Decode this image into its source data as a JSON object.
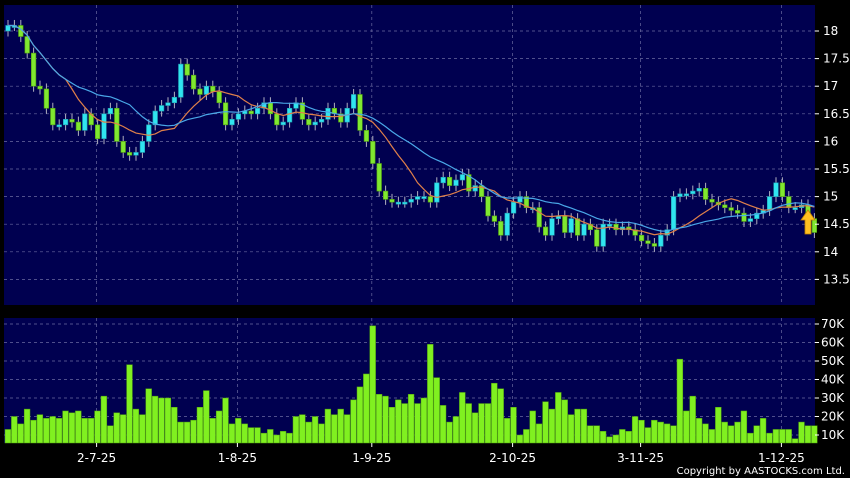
{
  "copyright": "Copyright by AASTOCKS.com Ltd.",
  "colors": {
    "background": "#000050",
    "up": "#30e4f0",
    "down": "#80e830",
    "ma_short": "#e0804a",
    "ma_long": "#4aa8e8",
    "volume": "#80f020",
    "grid": "#6a6aa0",
    "arrow": "#ffc020"
  },
  "chart_data": [
    {
      "type": "candlestick",
      "panel": "price",
      "ylim": [
        13.1,
        18.5
      ],
      "yticks": [
        "18",
        "17.5",
        "17",
        "16.5",
        "16",
        "15.5",
        "15",
        "14.5",
        "14",
        "13.5"
      ],
      "ytick_values": [
        18,
        17.5,
        17,
        16.5,
        16,
        15.5,
        15,
        14.5,
        14,
        13.5
      ],
      "grid": true,
      "moving_averages": [
        {
          "period": 10,
          "color": "#e0804a"
        },
        {
          "period": 20,
          "color": "#4aa8e8"
        }
      ],
      "latest_marker": "up-arrow-icon",
      "close": [
        18.1,
        18.1,
        17.9,
        17.6,
        17.0,
        16.95,
        16.6,
        16.3,
        16.3,
        16.4,
        16.35,
        16.2,
        16.5,
        16.3,
        16.05,
        16.5,
        16.6,
        16.0,
        15.8,
        15.75,
        15.8,
        16.0,
        16.3,
        16.55,
        16.65,
        16.7,
        16.8,
        17.4,
        17.2,
        16.95,
        16.85,
        17.0,
        16.9,
        16.7,
        16.3,
        16.4,
        16.5,
        16.55,
        16.5,
        16.6,
        16.7,
        16.5,
        16.3,
        16.35,
        16.6,
        16.7,
        16.4,
        16.3,
        16.35,
        16.4,
        16.6,
        16.5,
        16.35,
        16.6,
        16.85,
        16.2,
        16.0,
        15.6,
        15.1,
        14.95,
        14.9,
        14.9,
        14.9,
        14.95,
        15.0,
        15.0,
        14.9,
        15.25,
        15.35,
        15.2,
        15.3,
        15.4,
        15.1,
        15.2,
        15.0,
        14.65,
        14.55,
        14.3,
        14.7,
        14.9,
        15.0,
        14.8,
        14.8,
        14.45,
        14.3,
        14.6,
        14.65,
        14.35,
        14.6,
        14.3,
        14.5,
        14.4,
        14.1,
        14.5,
        14.5,
        14.4,
        14.45,
        14.4,
        14.3,
        14.2,
        14.15,
        14.1,
        14.3,
        14.4,
        15.0,
        15.05,
        15.05,
        15.1,
        15.15,
        14.95,
        14.9,
        14.85,
        14.8,
        14.75,
        14.7,
        14.55,
        14.6,
        14.7,
        14.75,
        15.0,
        15.25,
        15.0,
        14.8,
        14.8,
        14.85,
        14.6,
        14.35
      ]
    },
    {
      "type": "bar",
      "panel": "volume",
      "ylim": [
        5.7,
        72
      ],
      "yticks": [
        "70K",
        "60K",
        "50K",
        "40K",
        "30K",
        "20K",
        "10K"
      ],
      "ytick_values": [
        70,
        60,
        50,
        40,
        30,
        20,
        10
      ],
      "unit": "K",
      "grid": true,
      "xticks": [
        "2-7-25",
        "1-8-25",
        "1-9-25",
        "2-10-25",
        "3-11-25",
        "1-12-25"
      ],
      "xtick_index": [
        14,
        36,
        57,
        79,
        99,
        121
      ],
      "values": [
        13,
        20,
        16,
        24,
        18,
        21,
        19,
        20,
        19,
        23,
        22,
        23,
        19,
        19,
        23,
        31,
        15,
        22,
        21,
        48,
        24,
        21,
        35,
        31,
        30,
        30,
        25,
        17,
        17,
        18,
        25,
        34,
        19,
        23,
        30,
        16,
        19,
        16,
        14,
        14,
        11,
        13,
        10,
        12,
        11,
        20,
        21,
        17,
        20,
        16,
        24,
        21,
        24,
        21,
        29,
        36,
        43,
        69,
        32,
        31,
        25,
        29,
        27,
        32,
        27,
        30,
        59,
        41,
        26,
        17,
        20,
        33,
        27,
        22,
        27,
        27,
        38,
        35,
        19,
        25,
        10,
        13,
        23,
        16,
        28,
        24,
        33,
        29,
        21,
        24,
        24,
        15,
        15,
        12,
        9,
        10,
        13,
        12,
        20,
        18,
        14,
        18,
        17,
        16,
        15,
        51,
        23,
        31,
        19,
        16,
        13,
        25,
        17,
        15,
        17,
        23,
        11,
        15,
        19,
        11,
        13,
        13,
        13,
        8,
        17,
        15,
        15
      ]
    }
  ]
}
